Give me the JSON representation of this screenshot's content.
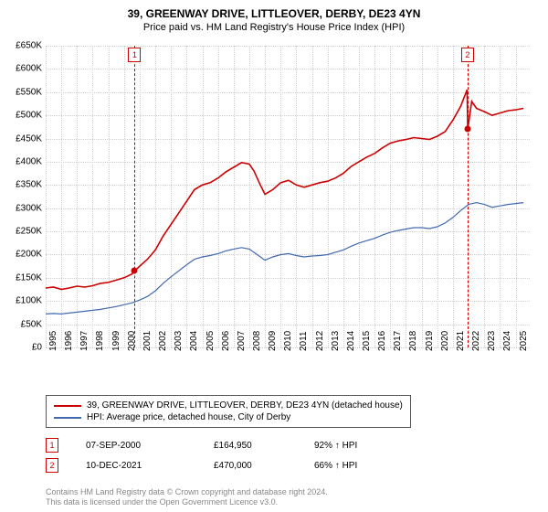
{
  "title": "39, GREENWAY DRIVE, LITTLEOVER, DERBY, DE23 4YN",
  "subtitle": "Price paid vs. HM Land Registry's House Price Index (HPI)",
  "chart": {
    "type": "line",
    "background_color": "#ffffff",
    "grid_color": "#d0d0d0",
    "xlim": [
      1995,
      2025.9
    ],
    "ylim": [
      0,
      650000
    ],
    "ytick_step": 50000,
    "ytick_labels": [
      "£0",
      "£50K",
      "£100K",
      "£150K",
      "£200K",
      "£250K",
      "£300K",
      "£350K",
      "£400K",
      "£450K",
      "£500K",
      "£550K",
      "£600K",
      "£650K"
    ],
    "xtick_step": 1,
    "xtick_labels": [
      "1995",
      "1996",
      "1997",
      "1998",
      "1999",
      "2000",
      "2001",
      "2002",
      "2003",
      "2004",
      "2005",
      "2006",
      "2007",
      "2008",
      "2009",
      "2010",
      "2011",
      "2012",
      "2013",
      "2014",
      "2015",
      "2016",
      "2017",
      "2018",
      "2019",
      "2020",
      "2021",
      "2022",
      "2023",
      "2024",
      "2025"
    ],
    "label_fontsize": 10,
    "series": [
      {
        "name": "price_paid",
        "color": "#cc0000",
        "line_width": 1.6,
        "points": [
          [
            1995.0,
            128000
          ],
          [
            1995.5,
            130000
          ],
          [
            1996.0,
            125000
          ],
          [
            1996.5,
            128000
          ],
          [
            1997.0,
            132000
          ],
          [
            1997.5,
            130000
          ],
          [
            1998.0,
            133000
          ],
          [
            1998.5,
            138000
          ],
          [
            1999.0,
            140000
          ],
          [
            1999.5,
            145000
          ],
          [
            2000.0,
            150000
          ],
          [
            2000.5,
            158000
          ],
          [
            2000.68,
            164950
          ],
          [
            2001.0,
            175000
          ],
          [
            2001.5,
            190000
          ],
          [
            2002.0,
            210000
          ],
          [
            2002.5,
            240000
          ],
          [
            2003.0,
            265000
          ],
          [
            2003.5,
            290000
          ],
          [
            2004.0,
            315000
          ],
          [
            2004.5,
            340000
          ],
          [
            2005.0,
            350000
          ],
          [
            2005.5,
            355000
          ],
          [
            2006.0,
            365000
          ],
          [
            2006.5,
            378000
          ],
          [
            2007.0,
            388000
          ],
          [
            2007.5,
            398000
          ],
          [
            2008.0,
            395000
          ],
          [
            2008.3,
            380000
          ],
          [
            2008.7,
            350000
          ],
          [
            2009.0,
            330000
          ],
          [
            2009.5,
            340000
          ],
          [
            2010.0,
            355000
          ],
          [
            2010.5,
            360000
          ],
          [
            2011.0,
            350000
          ],
          [
            2011.5,
            345000
          ],
          [
            2012.0,
            350000
          ],
          [
            2012.5,
            355000
          ],
          [
            2013.0,
            358000
          ],
          [
            2013.5,
            365000
          ],
          [
            2014.0,
            375000
          ],
          [
            2014.5,
            390000
          ],
          [
            2015.0,
            400000
          ],
          [
            2015.5,
            410000
          ],
          [
            2016.0,
            418000
          ],
          [
            2016.5,
            430000
          ],
          [
            2017.0,
            440000
          ],
          [
            2017.5,
            445000
          ],
          [
            2018.0,
            448000
          ],
          [
            2018.5,
            452000
          ],
          [
            2019.0,
            450000
          ],
          [
            2019.5,
            448000
          ],
          [
            2020.0,
            455000
          ],
          [
            2020.5,
            465000
          ],
          [
            2021.0,
            490000
          ],
          [
            2021.5,
            520000
          ],
          [
            2021.9,
            555000
          ],
          [
            2021.94,
            470000
          ],
          [
            2022.2,
            530000
          ],
          [
            2022.5,
            515000
          ],
          [
            2023.0,
            508000
          ],
          [
            2023.5,
            500000
          ],
          [
            2024.0,
            505000
          ],
          [
            2024.5,
            510000
          ],
          [
            2025.0,
            512000
          ],
          [
            2025.5,
            515000
          ]
        ]
      },
      {
        "name": "hpi",
        "color": "#4169b0",
        "line_width": 1.2,
        "points": [
          [
            1995.0,
            72000
          ],
          [
            1995.5,
            73000
          ],
          [
            1996.0,
            72000
          ],
          [
            1996.5,
            74000
          ],
          [
            1997.0,
            76000
          ],
          [
            1997.5,
            78000
          ],
          [
            1998.0,
            80000
          ],
          [
            1998.5,
            82000
          ],
          [
            1999.0,
            85000
          ],
          [
            1999.5,
            88000
          ],
          [
            2000.0,
            92000
          ],
          [
            2000.5,
            96000
          ],
          [
            2001.0,
            102000
          ],
          [
            2001.5,
            110000
          ],
          [
            2002.0,
            122000
          ],
          [
            2002.5,
            138000
          ],
          [
            2003.0,
            152000
          ],
          [
            2003.5,
            165000
          ],
          [
            2004.0,
            178000
          ],
          [
            2004.5,
            190000
          ],
          [
            2005.0,
            195000
          ],
          [
            2005.5,
            198000
          ],
          [
            2006.0,
            202000
          ],
          [
            2006.5,
            208000
          ],
          [
            2007.0,
            212000
          ],
          [
            2007.5,
            215000
          ],
          [
            2008.0,
            212000
          ],
          [
            2008.5,
            200000
          ],
          [
            2009.0,
            188000
          ],
          [
            2009.5,
            195000
          ],
          [
            2010.0,
            200000
          ],
          [
            2010.5,
            202000
          ],
          [
            2011.0,
            198000
          ],
          [
            2011.5,
            195000
          ],
          [
            2012.0,
            197000
          ],
          [
            2012.5,
            198000
          ],
          [
            2013.0,
            200000
          ],
          [
            2013.5,
            205000
          ],
          [
            2014.0,
            210000
          ],
          [
            2014.5,
            218000
          ],
          [
            2015.0,
            225000
          ],
          [
            2015.5,
            230000
          ],
          [
            2016.0,
            235000
          ],
          [
            2016.5,
            242000
          ],
          [
            2017.0,
            248000
          ],
          [
            2017.5,
            252000
          ],
          [
            2018.0,
            255000
          ],
          [
            2018.5,
            258000
          ],
          [
            2019.0,
            258000
          ],
          [
            2019.5,
            256000
          ],
          [
            2020.0,
            260000
          ],
          [
            2020.5,
            268000
          ],
          [
            2021.0,
            280000
          ],
          [
            2021.5,
            295000
          ],
          [
            2022.0,
            308000
          ],
          [
            2022.5,
            312000
          ],
          [
            2023.0,
            308000
          ],
          [
            2023.5,
            302000
          ],
          [
            2024.0,
            305000
          ],
          [
            2024.5,
            308000
          ],
          [
            2025.0,
            310000
          ],
          [
            2025.5,
            312000
          ]
        ]
      }
    ],
    "markers": [
      {
        "label": "1",
        "x": 2000.68,
        "y": 164950,
        "color": "#cc0000"
      },
      {
        "label": "2",
        "x": 2021.94,
        "y": 470000,
        "color": "#cc0000"
      }
    ]
  },
  "legend": {
    "items": [
      {
        "color": "#cc0000",
        "label": "39, GREENWAY DRIVE, LITTLEOVER, DERBY, DE23 4YN (detached house)"
      },
      {
        "color": "#4169b0",
        "label": "HPI: Average price, detached house, City of Derby"
      }
    ]
  },
  "sales": [
    {
      "num": "1",
      "color": "#cc0000",
      "date": "07-SEP-2000",
      "price": "£164,950",
      "pct": "92% ↑ HPI"
    },
    {
      "num": "2",
      "color": "#cc0000",
      "date": "10-DEC-2021",
      "price": "£470,000",
      "pct": "66% ↑ HPI"
    }
  ],
  "footer_line1": "Contains HM Land Registry data © Crown copyright and database right 2024.",
  "footer_line2": "This data is licensed under the Open Government Licence v3.0."
}
